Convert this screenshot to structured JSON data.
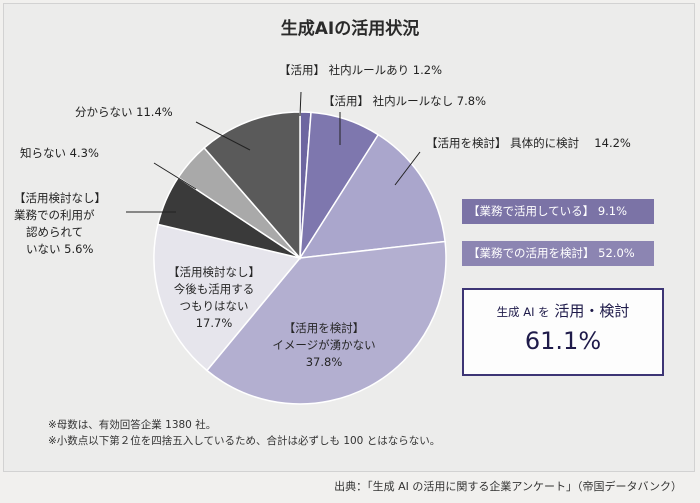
{
  "chart_data": {
    "type": "pie",
    "title": "生成AIの活用状況",
    "slices": [
      {
        "label": "【活用】社内ルールあり",
        "value": 1.2,
        "color": "#6d66a0"
      },
      {
        "label": "【活用】社内ルールなし",
        "value": 7.8,
        "color": "#7e77ae"
      },
      {
        "label": "【活用を検討】具体的に検討",
        "value": 14.2,
        "color": "#aaa6cc"
      },
      {
        "label": "【活用を検討】イメージが湧かない",
        "value": 37.8,
        "color": "#b3afd0"
      },
      {
        "label": "【活用検討なし】今後も活用するつもりはない",
        "value": 17.7,
        "color": "#e6e5ec"
      },
      {
        "label": "【活用検討なし】業務での利用が認められていない",
        "value": 5.6,
        "color": "#3a3a3a"
      },
      {
        "label": "知らない",
        "value": 4.3,
        "color": "#a9a9a9"
      },
      {
        "label": "分からない",
        "value": 11.4,
        "color": "#5a5a5a"
      }
    ]
  },
  "labels": {
    "rule_yes": "【活用】 社内ルールあり 1.2%",
    "rule_no": "【活用】 社内ルールなし 7.8%",
    "concrete": "【活用を検討】 具体的に検討　 14.2%",
    "unknown": "分からない 11.4%",
    "dontknow": "知らない 4.3%",
    "notallowed": [
      "【活用検討なし】",
      "業務での利用が",
      "認められて",
      "いない 5.6%"
    ],
    "willnot": [
      "【活用検討なし】",
      "今後も活用する",
      "つもりはない",
      "17.7%"
    ],
    "noimage": [
      "【活用を検討】",
      "イメージが湧かない",
      "37.8%"
    ]
  },
  "summary": {
    "using_label": "【業務で活用している】",
    "using_value": "9.1%",
    "considering_label": "【業務での活用を検討】",
    "considering_value": "52.0%",
    "total_prefix": "生成 AI を",
    "total_label": "活用・検討",
    "total_value": "61.1%"
  },
  "notes": {
    "n1": "※母数は、有効回答企業 1380 社。",
    "n2": "※小数点以下第２位を四捨五入しているため、合計は必ずしも 100 とはならない。"
  },
  "source": "出典：「生成 AI の活用に関する企業アンケート」（帝国データバンク）"
}
